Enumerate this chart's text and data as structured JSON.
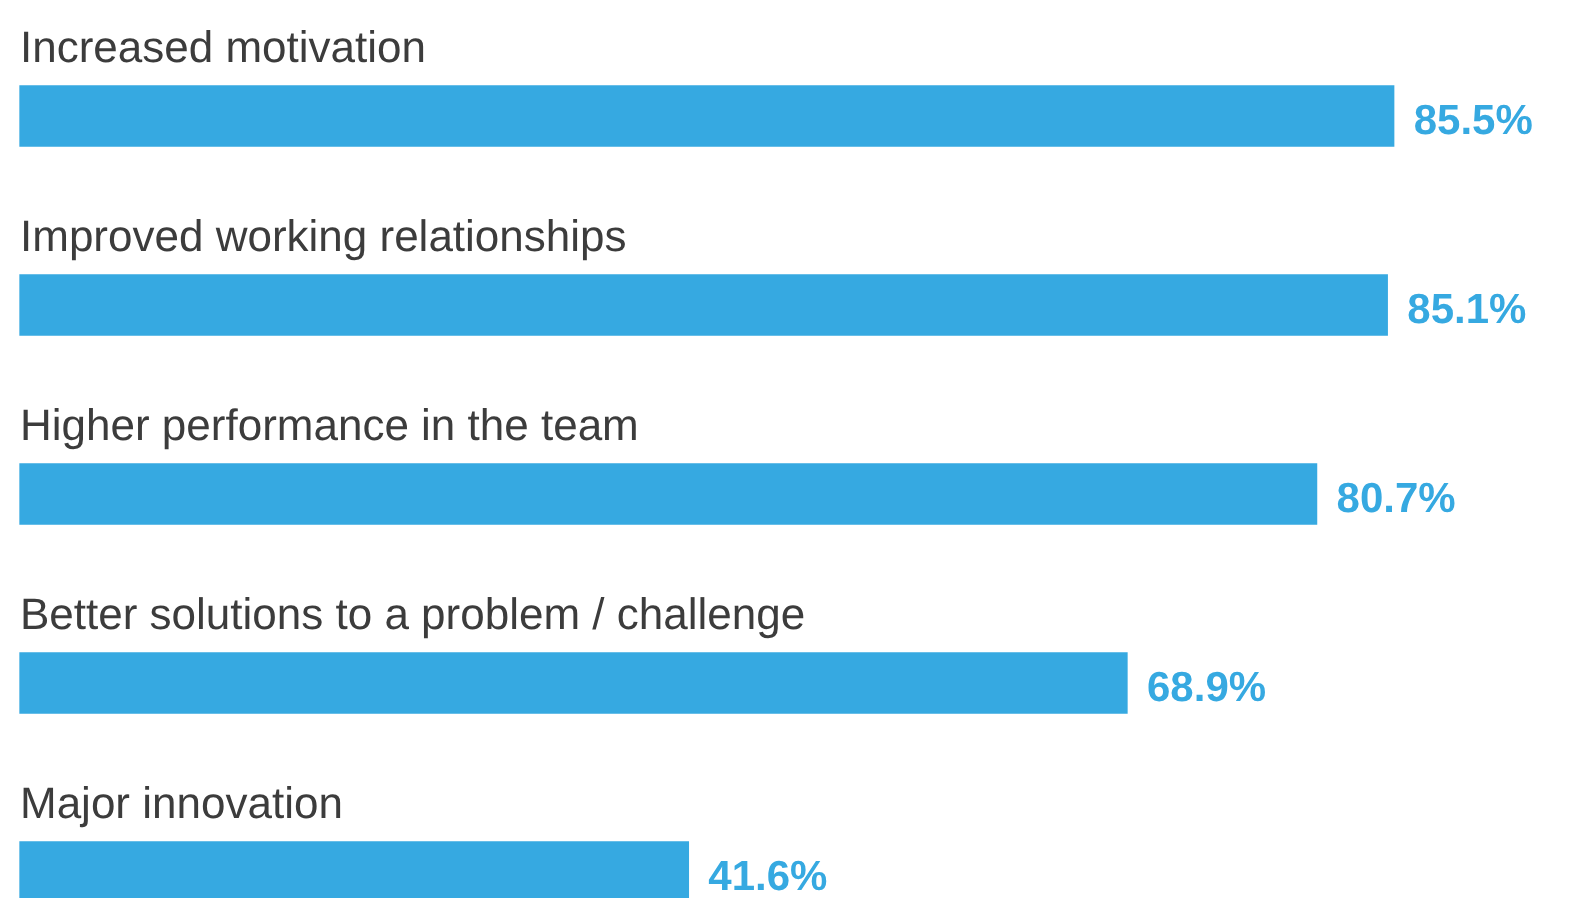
{
  "chart_data": {
    "type": "bar",
    "orientation": "horizontal",
    "categories": [
      "Increased motivation",
      "Improved working relationships",
      "Higher performance in the team",
      "Better solutions to a problem / challenge",
      "Major innovation"
    ],
    "values": [
      85.5,
      85.1,
      80.7,
      68.9,
      41.6
    ],
    "value_labels": [
      "85.5%",
      "85.1%",
      "80.7%",
      "68.9%",
      "41.6%"
    ],
    "color": "#36a9e1",
    "legend": false
  }
}
